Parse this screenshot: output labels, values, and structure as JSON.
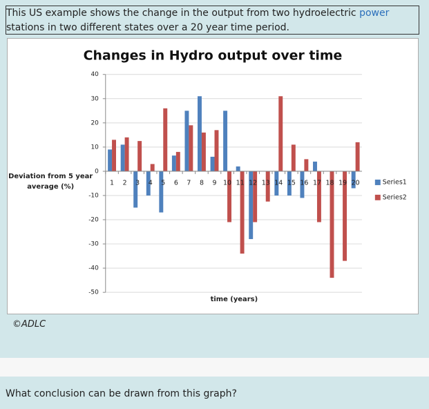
{
  "intro": {
    "before": "This US example shows the change in the output from two hydroelectric ",
    "link": "power",
    "after": " stations in two different states over a 20 year time period."
  },
  "chart_data": {
    "type": "bar",
    "title": "Changes in Hydro output over time",
    "y_label": "Deviation from 5 year average (%)",
    "x_label": "time (years)",
    "categories": [
      "1",
      "2",
      "3",
      "4",
      "5",
      "6",
      "7",
      "8",
      "9",
      "10",
      "11",
      "12",
      "13",
      "14",
      "15",
      "16",
      "17",
      "18",
      "19",
      "20"
    ],
    "series": [
      {
        "name": "Series1",
        "color": "#4f81bd",
        "values": [
          9,
          11,
          -15,
          -10,
          -17,
          6.5,
          25,
          31,
          6,
          25,
          2,
          -28,
          0,
          -10,
          -10,
          -11,
          4,
          0,
          0,
          -7
        ]
      },
      {
        "name": "Series2",
        "color": "#c0504d",
        "values": [
          13,
          14,
          12.5,
          3,
          26,
          8,
          19,
          16,
          17,
          -21,
          -34,
          -21,
          -12.5,
          31,
          11,
          5,
          -21,
          -44,
          -37,
          12
        ]
      }
    ],
    "ylim": [
      -50,
      40
    ],
    "yticks": [
      -50,
      -40,
      -30,
      -20,
      -10,
      0,
      10,
      20,
      30,
      40
    ],
    "grid": true,
    "legend": "right"
  },
  "copyright": "©ADLC",
  "question": "What conclusion can be drawn from this graph?"
}
